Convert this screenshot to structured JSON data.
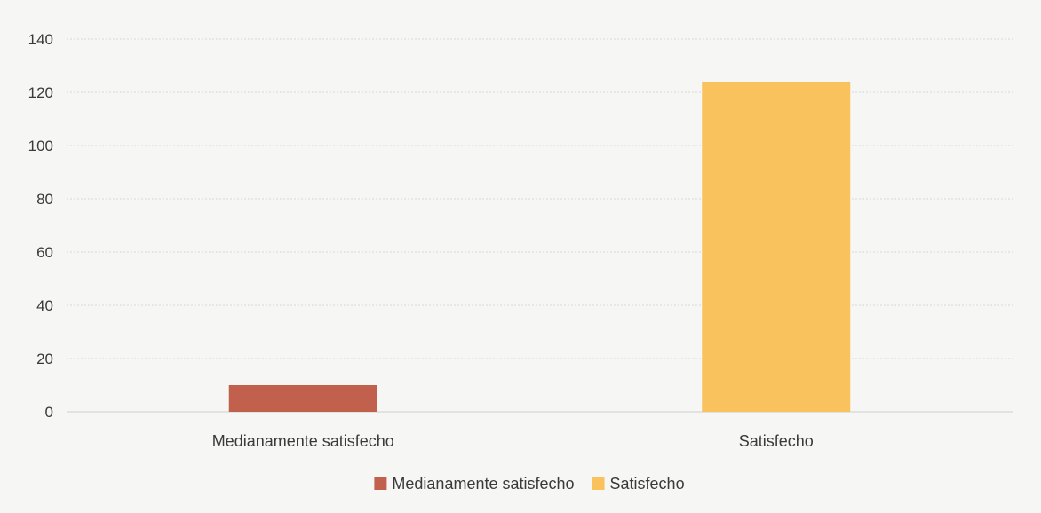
{
  "chart_data": {
    "type": "bar",
    "categories": [
      "Medianamente satisfecho",
      "Satisfecho"
    ],
    "series": [
      {
        "name": "Medianamente satisfecho",
        "values": [
          10,
          null
        ],
        "color": "#c0604d"
      },
      {
        "name": "Satisfecho",
        "values": [
          null,
          124
        ],
        "color": "#f9c25c"
      }
    ],
    "values": [
      10,
      124
    ],
    "ylim": [
      0,
      140
    ],
    "yticks": [
      0,
      20,
      40,
      60,
      80,
      100,
      120,
      140
    ],
    "grid": true,
    "legend_position": "bottom-center",
    "title": "",
    "xlabel": "",
    "ylabel": ""
  }
}
